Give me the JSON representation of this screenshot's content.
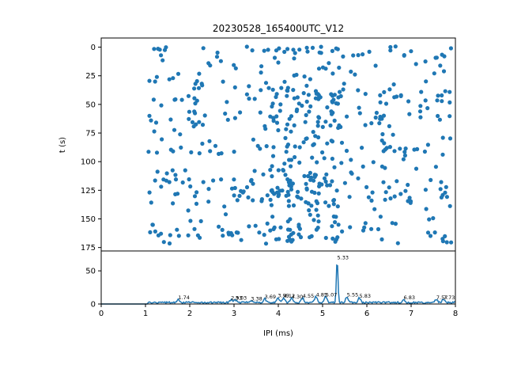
{
  "chart_data": [
    {
      "type": "scatter",
      "title": "20230528_165400UTC_V12",
      "ylabel": "t (s)",
      "ylim": [
        178,
        -8
      ],
      "yticks": [
        0,
        25,
        50,
        75,
        100,
        125,
        150,
        175
      ],
      "xlim": [
        0,
        8
      ],
      "color": "#1f77b4",
      "seed": 12,
      "count": 620,
      "clusters": [
        5.33,
        4.85,
        4.3,
        3.9
      ],
      "dense_times": [
        0,
        40,
        62,
        88,
        115,
        130,
        165
      ]
    },
    {
      "type": "line",
      "xlabel": "IPI (ms)",
      "xlim": [
        0,
        8
      ],
      "xticks": [
        0,
        1,
        2,
        3,
        4,
        5,
        6,
        7,
        8
      ],
      "ylim": [
        0,
        80
      ],
      "yticks": [
        0,
        50
      ],
      "color": "#1f77b4",
      "peaks": [
        {
          "x": 1.74,
          "y": 5,
          "label": "1.74"
        },
        {
          "x": 2.93,
          "y": 4,
          "label": "2.93"
        },
        {
          "x": 3.03,
          "y": 4,
          "label": "3.03"
        },
        {
          "x": 3.38,
          "y": 3,
          "label": "3.38"
        },
        {
          "x": 3.69,
          "y": 6,
          "label": "3.69"
        },
        {
          "x": 3.99,
          "y": 8,
          "label": "3.99"
        },
        {
          "x": 4.12,
          "y": 7,
          "label": "4.12"
        },
        {
          "x": 4.3,
          "y": 6,
          "label": "4.30"
        },
        {
          "x": 4.55,
          "y": 7,
          "label": "4.55"
        },
        {
          "x": 4.85,
          "y": 9,
          "label": "4.85"
        },
        {
          "x": 5.07,
          "y": 9,
          "label": "5.07"
        },
        {
          "x": 5.33,
          "y": 65,
          "label": "5.33"
        },
        {
          "x": 5.55,
          "y": 9,
          "label": "5.55"
        },
        {
          "x": 5.83,
          "y": 7,
          "label": "5.83"
        },
        {
          "x": 6.83,
          "y": 5,
          "label": "6.83"
        },
        {
          "x": 7.57,
          "y": 5,
          "label": "7.57"
        },
        {
          "x": 7.73,
          "y": 5,
          "label": "7.73"
        }
      ]
    }
  ]
}
